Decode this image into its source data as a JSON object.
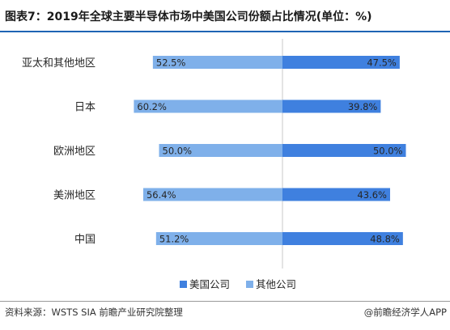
{
  "title": "图表7：2019年全球主要半导体市场中美国公司份额占比情况(单位：%)",
  "source": "资料来源：WSTS  SIA 前瞻产业研究院整理",
  "brand": "@前瞻经济学人APP",
  "colors": {
    "us": "#3f80df",
    "other": "#7fb0ea",
    "axis": "#c9c9c9",
    "label": "#262626",
    "value_label": "#262626"
  },
  "chart_data": {
    "type": "bar",
    "orientation": "horizontal-diverging",
    "categories": [
      "亚太和其他地区",
      "日本",
      "欧洲地区",
      "美洲地区",
      "中国"
    ],
    "series": [
      {
        "name": "美国公司",
        "values": [
          47.5,
          39.8,
          50.0,
          43.6,
          48.8
        ],
        "labels": [
          "47.5%",
          "39.8%",
          "50.0%",
          "43.6%",
          "48.8%"
        ]
      },
      {
        "name": "其他公司",
        "values": [
          52.5,
          60.2,
          50.0,
          56.4,
          51.2
        ],
        "labels": [
          "52.5%",
          "60.2%",
          "50.0%",
          "56.4%",
          "51.2%"
        ]
      }
    ],
    "legend_position": "bottom",
    "grid": false
  }
}
